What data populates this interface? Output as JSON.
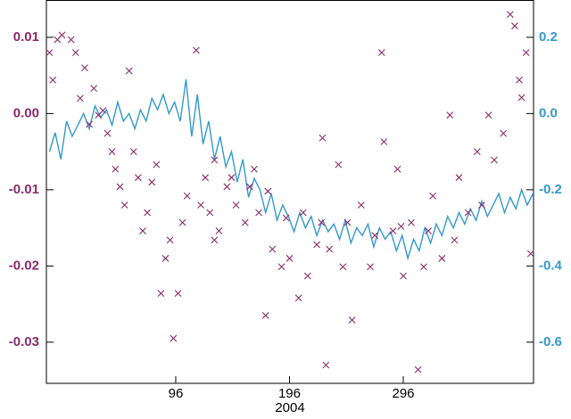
{
  "chart_data": {
    "type": "combo",
    "xlabel": "2004",
    "xlim": [
      -17.7,
      410.5
    ],
    "xticks": [
      96,
      196,
      296
    ],
    "ylim": [
      -0.0354,
      0.0149
    ],
    "yticks": [
      {
        "value": 0.01,
        "label": "0.01"
      },
      {
        "value": 0,
        "label": "0.00"
      },
      {
        "value": -0.01,
        "label": "-0.01"
      },
      {
        "value": -0.02,
        "label": "-0.02"
      },
      {
        "value": -0.03,
        "label": "-0.03"
      }
    ],
    "y2lim": [
      -0.708,
      0.298
    ],
    "y2ticks": [
      0.2,
      {
        "value": 0,
        "label": "0.0"
      },
      -0.2,
      -0.4,
      -0.6
    ],
    "ycolor": "#8b2a6b",
    "y2color": "#3399cc",
    "series": [
      {
        "type": "line",
        "axis": "y2",
        "color": "#3399cc",
        "x": [
          -15,
          -10,
          -5,
          0,
          5,
          10,
          15,
          20,
          25,
          30,
          35,
          40,
          45,
          50,
          55,
          60,
          65,
          70,
          75,
          80,
          85,
          90,
          95,
          100,
          105,
          110,
          115,
          120,
          125,
          130,
          135,
          140,
          145,
          150,
          155,
          160,
          165,
          170,
          175,
          180,
          185,
          190,
          195,
          200,
          205,
          210,
          215,
          220,
          225,
          230,
          235,
          240,
          245,
          250,
          255,
          260,
          265,
          270,
          275,
          280,
          285,
          290,
          295,
          300,
          305,
          310,
          315,
          320,
          325,
          330,
          335,
          340,
          345,
          350,
          355,
          360,
          365,
          370,
          375,
          380,
          385,
          390,
          395,
          400,
          405,
          410
        ],
        "values": [
          -0.1,
          -0.05,
          -0.12,
          -0.02,
          -0.06,
          -0.03,
          0.0,
          -0.04,
          0.02,
          -0.01,
          0.01,
          -0.03,
          0.03,
          -0.02,
          0.0,
          -0.04,
          0.01,
          -0.02,
          0.04,
          0.01,
          0.05,
          0.0,
          0.03,
          -0.02,
          0.09,
          -0.06,
          0.05,
          -0.08,
          -0.02,
          -0.12,
          -0.06,
          -0.14,
          -0.1,
          -0.18,
          -0.12,
          -0.22,
          -0.17,
          -0.2,
          -0.26,
          -0.21,
          -0.28,
          -0.24,
          -0.27,
          -0.31,
          -0.26,
          -0.3,
          -0.27,
          -0.32,
          -0.28,
          -0.31,
          -0.29,
          -0.33,
          -0.28,
          -0.34,
          -0.3,
          -0.32,
          -0.29,
          -0.35,
          -0.3,
          -0.33,
          -0.31,
          -0.36,
          -0.32,
          -0.38,
          -0.33,
          -0.36,
          -0.3,
          -0.34,
          -0.29,
          -0.32,
          -0.27,
          -0.3,
          -0.26,
          -0.29,
          -0.25,
          -0.28,
          -0.23,
          -0.27,
          -0.24,
          -0.21,
          -0.26,
          -0.22,
          -0.25,
          -0.2,
          -0.24,
          -0.21
        ]
      },
      {
        "type": "scatter",
        "axis": "y",
        "color": "#8b2a6b",
        "x": [
          -15,
          -12,
          -8,
          -4,
          4,
          8,
          12,
          16,
          20,
          24,
          28,
          32,
          36,
          40,
          43,
          47,
          51,
          55,
          59,
          63,
          67,
          71,
          75,
          79,
          83,
          87,
          91,
          94,
          98,
          102,
          106,
          114,
          118,
          122,
          126,
          130,
          134,
          141,
          149,
          157,
          165,
          169,
          175,
          181,
          189,
          196,
          204,
          212,
          220,
          225,
          231,
          239,
          243,
          228,
          251,
          259,
          267,
          277,
          279,
          287,
          291,
          296,
          303,
          309,
          314,
          322,
          330,
          337,
          345,
          353,
          361,
          371,
          376,
          384,
          390,
          394,
          398,
          400,
          404,
          408,
          130,
          145,
          161,
          177,
          193,
          208,
          224,
          247,
          271,
          294,
          318,
          341,
          365
        ],
        "values": [
          0.008,
          0.0044,
          0.0097,
          0.0103,
          0.0097,
          0.008,
          0.002,
          0.006,
          -0.0014,
          0.0033,
          -0.0002,
          0.0004,
          -0.0026,
          -0.005,
          -0.0073,
          -0.0096,
          -0.012,
          0.0056,
          -0.005,
          -0.0084,
          -0.0154,
          -0.013,
          -0.009,
          -0.0067,
          -0.0236,
          -0.019,
          -0.0166,
          -0.0295,
          -0.0236,
          -0.0143,
          -0.0108,
          0.0083,
          -0.012,
          -0.0084,
          -0.013,
          -0.0166,
          -0.0154,
          -0.0096,
          -0.012,
          -0.0143,
          -0.0073,
          -0.013,
          -0.0265,
          -0.0178,
          -0.0201,
          -0.019,
          -0.0242,
          -0.0213,
          -0.0172,
          -0.0032,
          -0.0178,
          -0.0067,
          -0.0201,
          -0.033,
          -0.0271,
          -0.012,
          -0.0201,
          0.008,
          -0.0037,
          -0.0154,
          -0.0073,
          -0.0213,
          -0.0143,
          -0.0336,
          -0.0201,
          -0.0108,
          -0.019,
          -0.0002,
          -0.0084,
          -0.013,
          -0.005,
          -0.0002,
          -0.0061,
          -0.0026,
          0.013,
          0.0115,
          0.0044,
          0.0021,
          0.008,
          -0.0184,
          -0.0061,
          -0.0084,
          -0.0096,
          -0.0102,
          -0.0137,
          -0.013,
          -0.0143,
          -0.0143,
          -0.016,
          -0.0148,
          -0.0154,
          -0.0166,
          -0.012
        ]
      }
    ]
  }
}
